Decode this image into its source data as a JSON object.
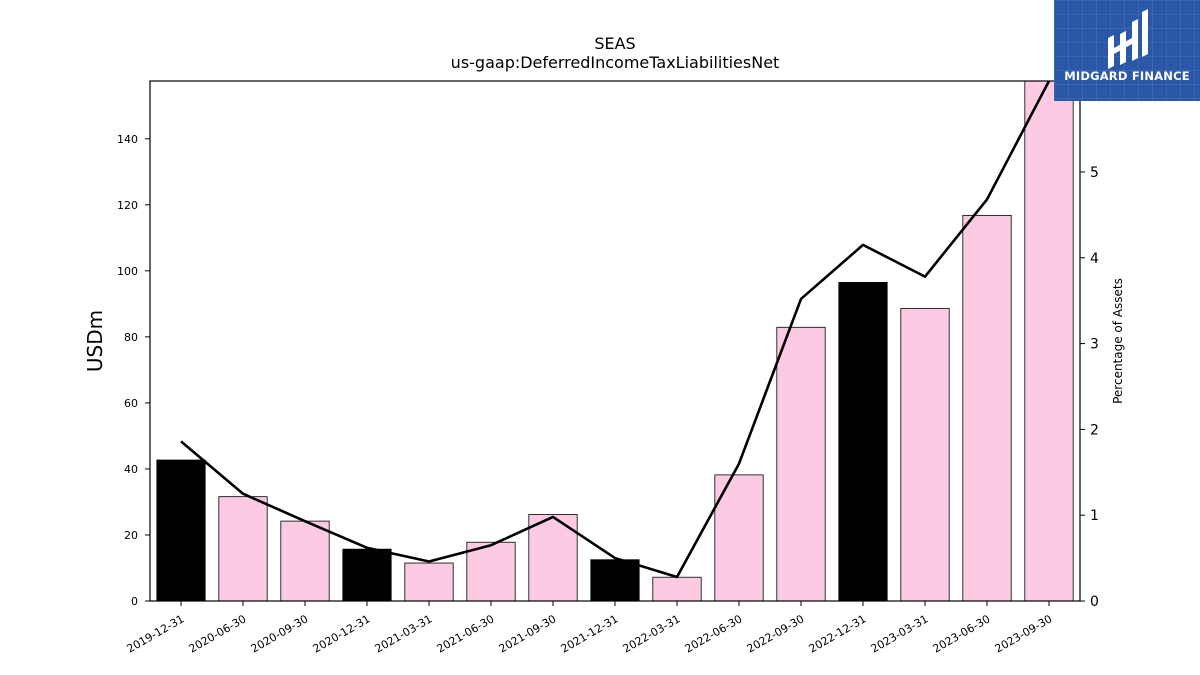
{
  "title": "SEAS",
  "subtitle": "us-gaap:DeferredIncomeTaxLiabilitiesNet",
  "logo": {
    "text": "MIDGARD FINANCE",
    "icon": "midgard-logo-icon",
    "background": "#2a57a8"
  },
  "colors": {
    "annual_bar": "#000000",
    "quarter_bar": "#fccae3",
    "line": "#000000"
  },
  "chart_data": {
    "type": "bar",
    "categories": [
      "2019-12-31",
      "2020-06-30",
      "2020-09-30",
      "2020-12-31",
      "2021-03-31",
      "2021-06-30",
      "2021-09-30",
      "2021-12-31",
      "2022-03-31",
      "2022-06-30",
      "2022-09-30",
      "2022-12-31",
      "2023-03-31",
      "2023-06-30",
      "2023-09-30"
    ],
    "series": [
      {
        "type": "bar",
        "axis": "left",
        "values": [
          42.7,
          31.6,
          24.2,
          15.7,
          11.5,
          17.8,
          26.2,
          12.5,
          7.2,
          38.2,
          82.9,
          96.5,
          88.6,
          116.8,
          157.5
        ]
      },
      {
        "type": "line",
        "axis": "right",
        "values": [
          1.86,
          1.25,
          0.93,
          0.62,
          0.46,
          0.65,
          0.98,
          0.5,
          0.28,
          1.6,
          3.52,
          4.15,
          3.78,
          4.68,
          6.06
        ]
      }
    ],
    "bar_fill_by_category": [
      "annual",
      "quarter",
      "quarter",
      "annual",
      "quarter",
      "quarter",
      "quarter",
      "annual",
      "quarter",
      "quarter",
      "quarter",
      "annual",
      "quarter",
      "quarter",
      "quarter"
    ],
    "ylabel": "USDm",
    "y2label": "Percentage of Assets",
    "ylim": [
      0,
      157.5
    ],
    "y2lim": [
      0,
      6.06
    ],
    "yticks": [
      0,
      20,
      40,
      60,
      80,
      100,
      120,
      140
    ],
    "y2ticks": [
      0,
      1,
      2,
      3,
      4,
      5
    ],
    "grid": false,
    "legend": "none"
  }
}
